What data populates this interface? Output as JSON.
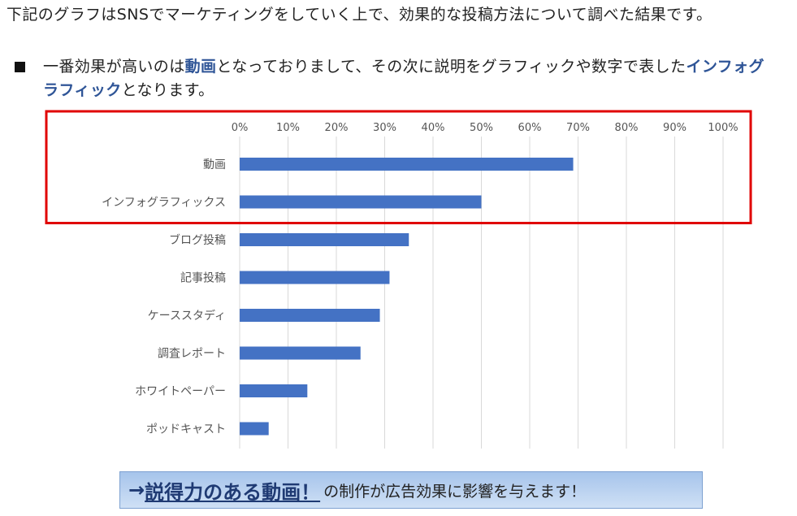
{
  "intro_text": "下記のグラフはSNSでマーケティングをしていく上で、効果的な投稿方法について調べた結果です。",
  "bullet": {
    "before": "一番効果が高いのは",
    "highlight1": "動画",
    "middle": "となっておりまして、その次に説明をグラフィックや数字で表した",
    "highlight2": "インフォグラフィック",
    "after": "となります。"
  },
  "chart_data": {
    "type": "bar",
    "orientation": "horizontal",
    "categories": [
      "動画",
      "インフォグラフィックス",
      "ブログ投稿",
      "記事投稿",
      "ケーススタディ",
      "調査レポート",
      "ホワイトペーパー",
      "ポッドキャスト"
    ],
    "values": [
      0.69,
      0.5,
      0.35,
      0.31,
      0.29,
      0.25,
      0.14,
      0.06
    ],
    "x_ticks": [
      "0%",
      "10%",
      "20%",
      "30%",
      "40%",
      "50%",
      "60%",
      "70%",
      "80%",
      "90%",
      "100%"
    ],
    "xlim": [
      0,
      1
    ],
    "x_axis_position": "top",
    "grid": true,
    "bar_color": "#4472c4",
    "highlight_box_color": "#e00000",
    "highlighted_categories": [
      "動画",
      "インフォグラフィックス"
    ]
  },
  "callout": {
    "arrow": "→",
    "emphasis": "説得力のある動画！",
    "rest": "の制作が広告効果に影響を与えます！"
  }
}
